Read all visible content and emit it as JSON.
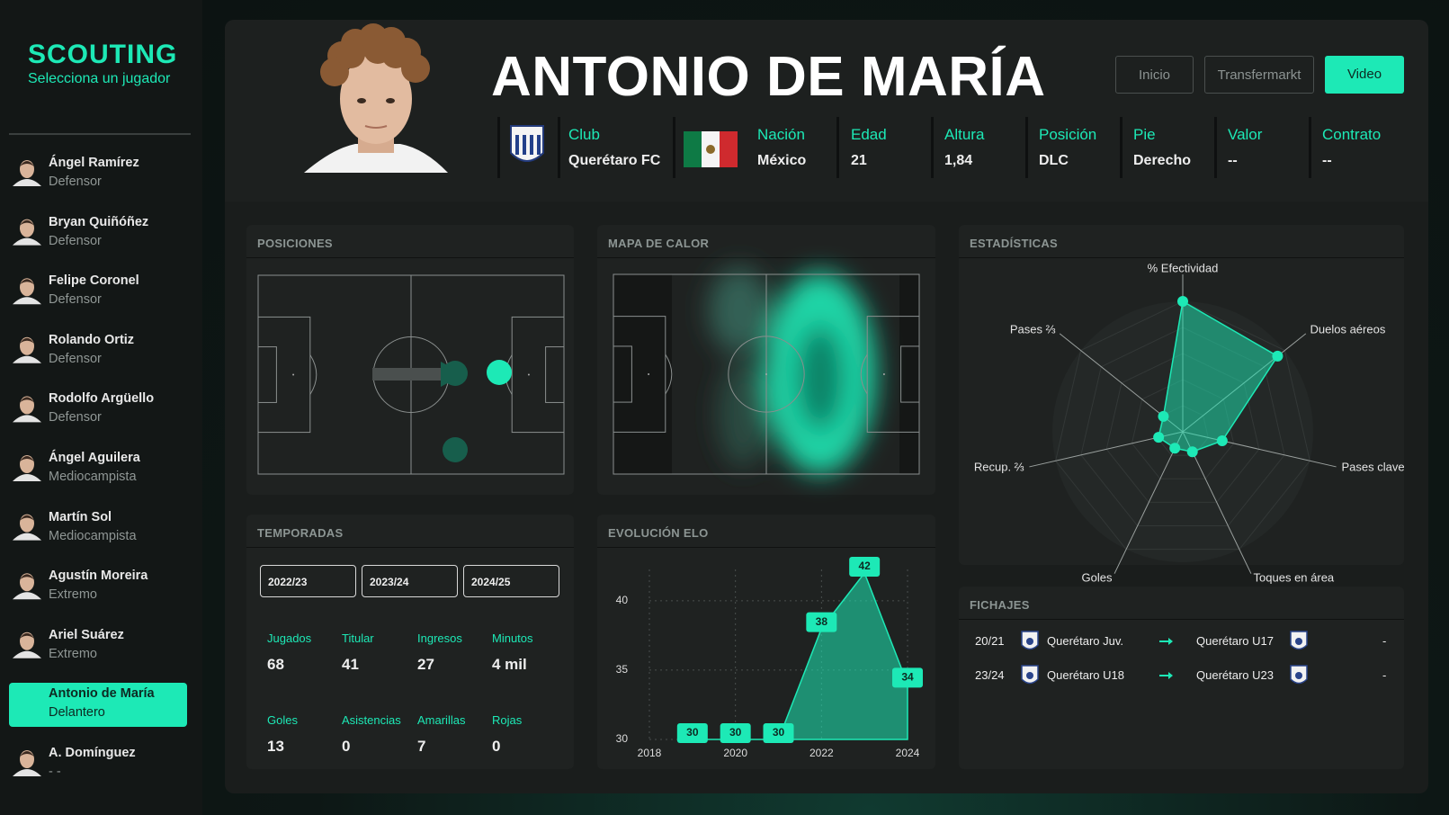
{
  "sidebar": {
    "title": "SCOUTING",
    "subtitle": "Selecciona un jugador",
    "players": [
      {
        "name": "Ángel Ramírez",
        "position": "Defensor"
      },
      {
        "name": "Bryan Quiñóñez",
        "position": "Defensor"
      },
      {
        "name": "Felipe Coronel",
        "position": "Defensor"
      },
      {
        "name": "Rolando Ortiz",
        "position": "Defensor"
      },
      {
        "name": "Rodolfo Argüello",
        "position": "Defensor"
      },
      {
        "name": "Ángel Aguilera",
        "position": "Mediocampista"
      },
      {
        "name": "Martín Sol",
        "position": "Mediocampista"
      },
      {
        "name": "Agustín Moreira",
        "position": "Extremo"
      },
      {
        "name": "Ariel Suárez",
        "position": "Extremo"
      },
      {
        "name": "Antonio de María",
        "position": "Delantero",
        "selected": true
      },
      {
        "name": "A. Domínguez",
        "position": "- -"
      }
    ]
  },
  "header": {
    "name": "ANTONIO DE MARÍA",
    "buttons": [
      "Inicio",
      "Transfermarkt",
      "Video"
    ],
    "info": [
      {
        "label": "Club",
        "value": "Querétaro FC"
      },
      {
        "label": "Nación",
        "value": "México"
      },
      {
        "label": "Edad",
        "value": "21"
      },
      {
        "label": "Altura",
        "value": "1,84"
      },
      {
        "label": "Posición",
        "value": "DLC"
      },
      {
        "label": "Pie",
        "value": "Derecho"
      },
      {
        "label": "Valor",
        "value": "--"
      },
      {
        "label": "Contrato",
        "value": "--"
      }
    ]
  },
  "positions": {
    "title": "POSICIONES"
  },
  "heatmap": {
    "title": "MAPA DE CALOR"
  },
  "seasons": {
    "title": "TEMPORADAS",
    "buttons": [
      "2022/23",
      "2023/24",
      "2024/25"
    ],
    "stats": [
      {
        "label": "Jugados",
        "value": "68"
      },
      {
        "label": "Titular",
        "value": "41"
      },
      {
        "label": "Ingresos",
        "value": "27"
      },
      {
        "label": "Minutos",
        "value": "4 mil"
      },
      {
        "label": "Goles",
        "value": "13"
      },
      {
        "label": "Asistencias",
        "value": "0"
      },
      {
        "label": "Amarillas",
        "value": "7"
      },
      {
        "label": "Rojas",
        "value": "0"
      }
    ]
  },
  "transfers": {
    "title": "FICHAJES",
    "rows": [
      {
        "season": "20/21",
        "from": "Querétaro Juv.",
        "to": "Querétaro U17",
        "fee": "-"
      },
      {
        "season": "23/24",
        "from": "Querétaro U18",
        "to": "Querétaro U23",
        "fee": "-"
      }
    ]
  },
  "chart_data": [
    {
      "type": "radar",
      "title": "ESTADÍSTICAS",
      "categories": [
        "% Efectividad",
        "Duelos aéreos",
        "Pases clave",
        "Toques en área",
        "Goles",
        "Recup. ⅔",
        "Pases ⅔"
      ],
      "values": [
        100,
        93,
        31,
        17,
        14,
        19,
        19
      ],
      "rlim": [
        0,
        100
      ],
      "color": "#1de9b6"
    },
    {
      "type": "area",
      "title": "EVOLUCIÓN ELO",
      "x": [
        2019,
        2020,
        2021,
        2022,
        2023,
        2024
      ],
      "values": [
        30,
        30,
        30,
        38,
        42,
        34
      ],
      "xlim": [
        2018,
        2024
      ],
      "xticks": [
        2018,
        2020,
        2022,
        2024
      ],
      "ylim": [
        30,
        42
      ],
      "yticks": [
        30,
        35,
        40
      ],
      "grid": true,
      "color": "#1de9b6"
    }
  ]
}
